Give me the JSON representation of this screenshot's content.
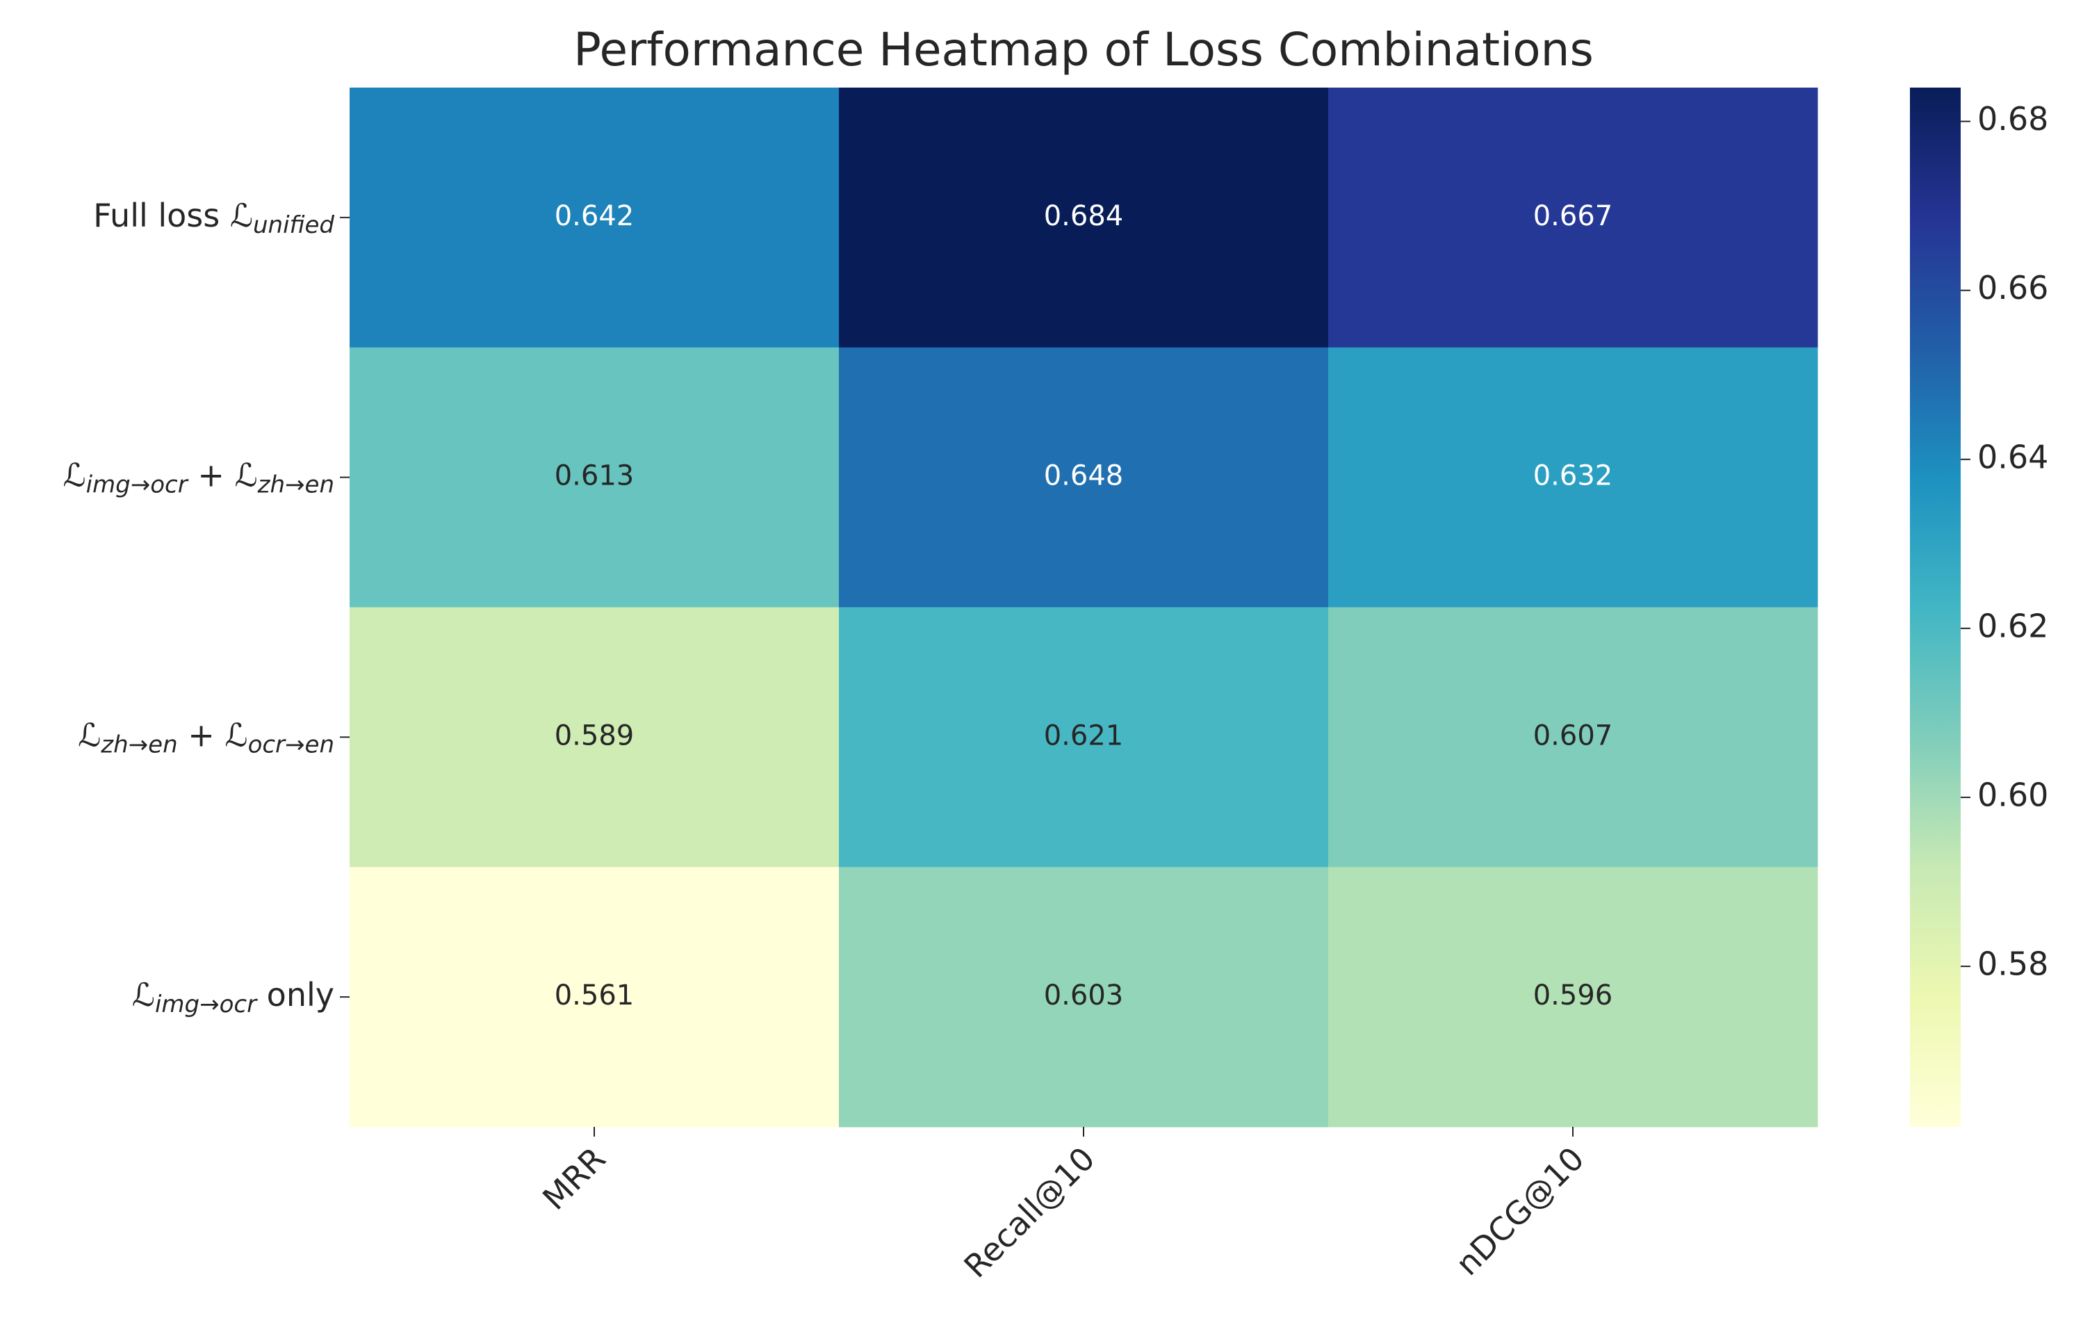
{
  "chart_data": {
    "type": "heatmap",
    "title": "Performance Heatmap of Loss Combinations",
    "columns": [
      "MRR",
      "Recall@10",
      "nDCG@10"
    ],
    "rows": [
      [
        {
          "text": "Full loss ℒ",
          "sub": "unified"
        }
      ],
      [
        {
          "text": "ℒ",
          "sub": "img→ocr"
        },
        {
          "text": " + ℒ",
          "sub": "zh→en"
        }
      ],
      [
        {
          "text": "ℒ",
          "sub": "zh→en"
        },
        {
          "text": " + ℒ",
          "sub": "ocr→en"
        }
      ],
      [
        {
          "text": "ℒ",
          "sub": "img→ocr"
        },
        {
          "text": " only"
        }
      ]
    ],
    "values": [
      [
        0.642,
        0.684,
        0.667
      ],
      [
        0.613,
        0.648,
        0.632
      ],
      [
        0.589,
        0.621,
        0.607
      ],
      [
        0.561,
        0.603,
        0.596
      ]
    ],
    "colormap": "YlGnBu",
    "clim": [
      0.561,
      0.684
    ],
    "cticks": [
      0.58,
      {
        "value": 0.6,
        "label": "0.60"
      },
      0.62,
      0.64,
      0.66,
      0.68
    ]
  }
}
